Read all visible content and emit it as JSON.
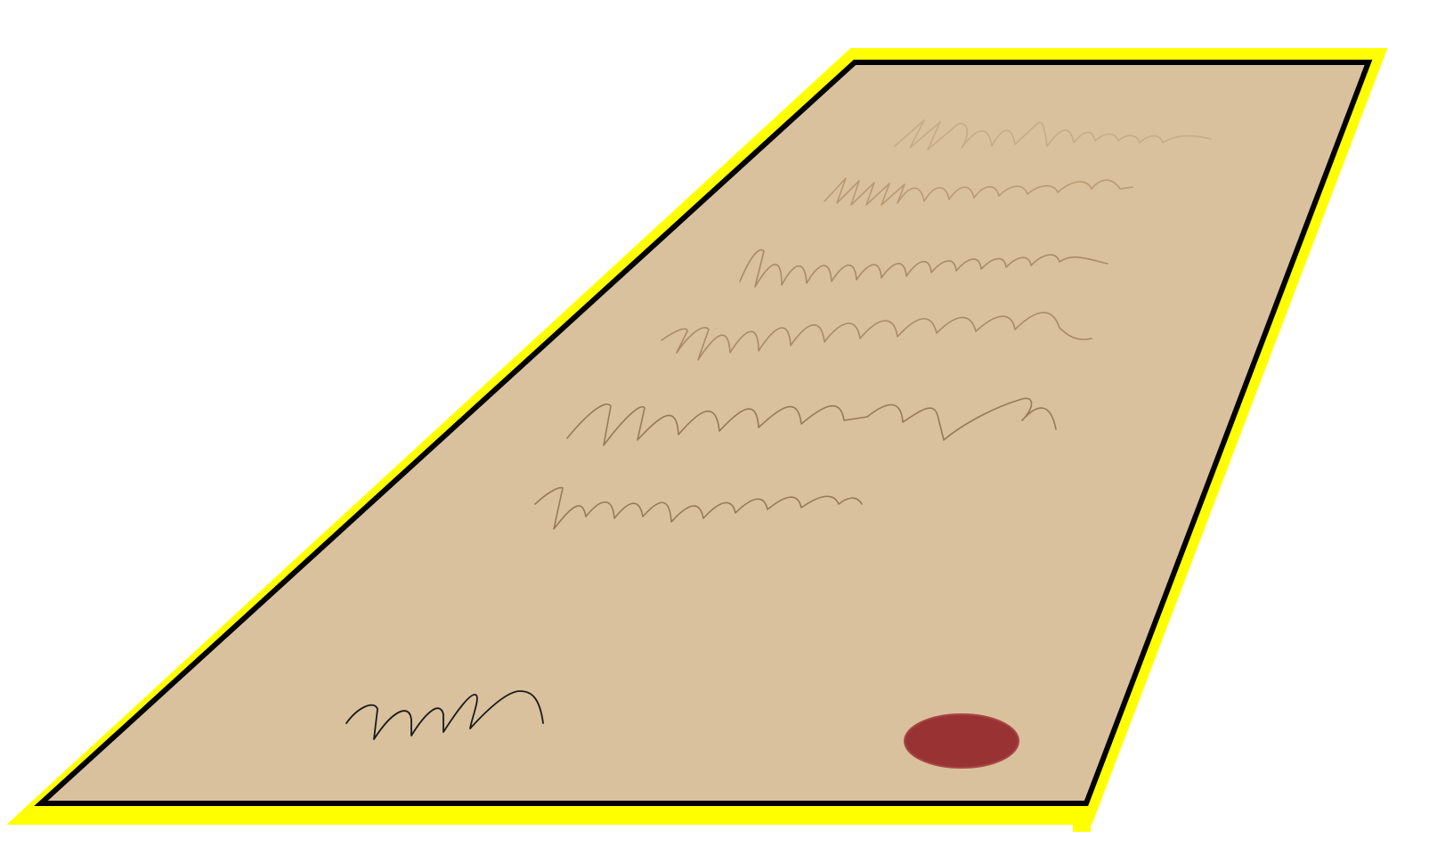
{
  "illustration": {
    "subject": "document-with-seal",
    "colors": {
      "background": "#ffffff",
      "glow": "#ffff00",
      "outline": "#000000",
      "paper": "#d9c19d",
      "seal": "#993333",
      "seal_edge": "#a84545",
      "text_lines": "#a88b66",
      "signature": "#1a1a1a"
    },
    "text_line_count": 6,
    "has_signature": true,
    "has_seal": true
  }
}
